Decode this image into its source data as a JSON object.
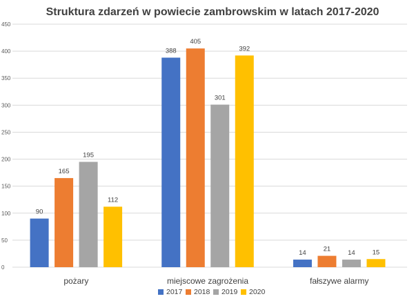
{
  "chart_data": {
    "type": "bar",
    "title": "Struktura zdarzeń w powiecie zambrowskim w latach 2017-2020",
    "xlabel": "",
    "ylabel": "",
    "ylim": [
      0,
      450
    ],
    "yticks": [
      0,
      50,
      100,
      150,
      200,
      250,
      300,
      350,
      400,
      450
    ],
    "grid": true,
    "legend": "bottom",
    "categories": [
      "pożary",
      "miejscowe zagrożenia",
      "fałszywe alarmy"
    ],
    "series": [
      {
        "name": "2017",
        "color": "#4472C4",
        "values": [
          90,
          388,
          14
        ]
      },
      {
        "name": "2018",
        "color": "#ED7D31",
        "values": [
          165,
          405,
          21
        ]
      },
      {
        "name": "2019",
        "color": "#A5A5A5",
        "values": [
          195,
          301,
          14
        ]
      },
      {
        "name": "2020",
        "color": "#FFC000",
        "values": [
          112,
          392,
          15
        ]
      }
    ]
  }
}
